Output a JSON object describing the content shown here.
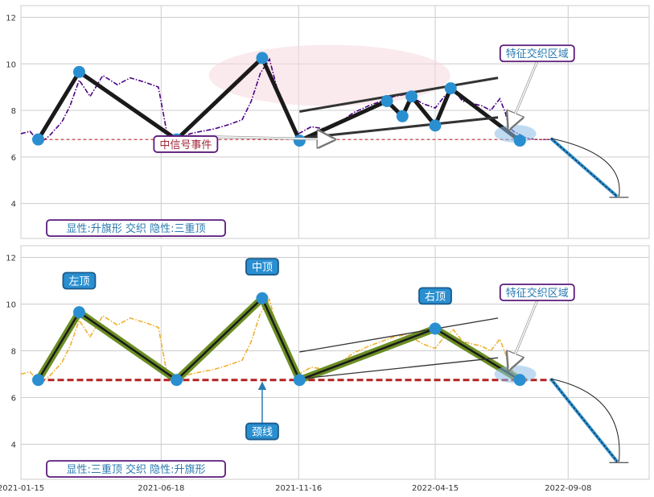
{
  "chart_data": [
    {
      "type": "line",
      "panel": "top",
      "ylim": [
        2.5,
        12.5
      ],
      "yticks": [
        4,
        6,
        8,
        10,
        12
      ],
      "grid": true,
      "series": [
        {
          "name": "",
          "style": "dash-dot",
          "color": "#4b0082",
          "x": [
            "2021-01-15",
            "2021-01-25",
            "2021-02-05",
            "2021-02-15",
            "2021-03-01",
            "2021-03-10",
            "2021-03-20",
            "2021-04-01",
            "2021-04-15",
            "2021-05-01",
            "2021-05-15",
            "2021-06-01",
            "2021-06-15",
            "2021-06-25",
            "2021-07-08",
            "2021-07-20",
            "2021-08-01",
            "2021-08-15",
            "2021-09-01",
            "2021-09-15",
            "2021-09-25",
            "2021-10-05",
            "2021-10-15",
            "2021-10-25",
            "2021-11-05",
            "2021-11-16",
            "2021-11-30",
            "2021-12-15",
            "2022-01-01",
            "2022-01-15",
            "2022-02-01",
            "2022-02-15",
            "2022-03-01",
            "2022-03-15",
            "2022-04-01",
            "2022-04-15",
            "2022-04-25",
            "2022-05-05",
            "2022-05-15",
            "2022-05-25",
            "2022-06-05",
            "2022-06-15",
            "2022-06-25",
            "2022-07-01",
            "2022-07-05",
            "2022-07-10",
            "2022-07-15",
            "2022-07-20",
            "2022-07-25"
          ],
          "y": [
            7.0,
            7.1,
            6.6,
            6.9,
            7.5,
            8.2,
            9.3,
            8.6,
            9.5,
            9.1,
            9.4,
            9.2,
            9.0,
            6.9,
            6.8,
            7.0,
            7.1,
            7.2,
            7.4,
            7.6,
            8.4,
            9.6,
            10.2,
            8.7,
            7.6,
            7.0,
            7.3,
            7.2,
            7.5,
            7.9,
            8.2,
            8.4,
            8.6,
            8.7,
            8.3,
            8.1,
            8.6,
            8.9,
            8.4,
            8.3,
            8.2,
            8.0,
            8.5,
            7.9,
            7.3,
            7.1,
            7.0,
            6.9,
            6.8
          ]
        },
        {
          "name": "",
          "style": "dashed",
          "color": "#4b0082",
          "x": [
            "2022-07-25",
            "2022-08-05",
            "2022-08-20"
          ],
          "y": [
            6.8,
            6.75,
            6.75
          ]
        },
        {
          "name": "",
          "style": "solid-thick",
          "color": "#1a1a1a",
          "x": [
            "2021-02-03",
            "2021-03-20",
            "2021-07-05",
            "2021-10-07",
            "2021-11-17",
            "2022-02-21",
            "2022-03-10",
            "2022-03-20",
            "2022-04-15",
            "2022-05-02",
            "2022-07-17"
          ],
          "y": [
            6.75,
            9.65,
            6.75,
            10.25,
            6.7,
            8.4,
            7.75,
            8.6,
            7.35,
            8.95,
            6.7
          ]
        }
      ],
      "points": [
        {
          "x": "2021-02-03",
          "y": 6.75
        },
        {
          "x": "2021-03-20",
          "y": 9.65
        },
        {
          "x": "2021-07-05",
          "y": 6.75
        },
        {
          "x": "2021-10-07",
          "y": 10.25
        },
        {
          "x": "2021-11-17",
          "y": 6.7
        },
        {
          "x": "2022-02-21",
          "y": 8.4
        },
        {
          "x": "2022-03-10",
          "y": 7.75
        },
        {
          "x": "2022-03-20",
          "y": 8.6
        },
        {
          "x": "2022-04-15",
          "y": 7.35
        },
        {
          "x": "2022-05-02",
          "y": 8.95
        },
        {
          "x": "2022-07-17",
          "y": 6.7
        }
      ],
      "neckline": {
        "x": [
          "2021-02-03",
          "2022-08-20"
        ],
        "y": 6.75
      },
      "channel_upper": {
        "x": [
          "2021-11-17",
          "2022-06-23"
        ],
        "y": [
          7.95,
          9.4
        ]
      },
      "channel_lower": {
        "x": [
          "2021-11-17",
          "2022-06-23"
        ],
        "y": [
          6.8,
          7.7
        ]
      },
      "projection": {
        "x": [
          "2022-08-20",
          "2022-11-01"
        ],
        "y": [
          6.8,
          4.3
        ]
      },
      "annotations": [
        {
          "label": "中信号事件",
          "x": "2021-07-15",
          "y": 6.55,
          "arrow_to": {
            "x": "2021-12-25",
            "y": 6.75
          }
        },
        {
          "label": "特征交织区域",
          "x": "2022-08-05",
          "y": 10.45,
          "arrow_to": {
            "x": "2022-07-05",
            "y": 7.2
          }
        },
        {
          "label": "显性:升旗形 交织 隐性:三重顶",
          "x": "2021-01-15",
          "y": 2.6
        }
      ]
    },
    {
      "type": "line",
      "panel": "bottom",
      "ylim": [
        2.5,
        12.5
      ],
      "yticks": [
        4,
        6,
        8,
        10,
        12
      ],
      "grid": true,
      "xticks": [
        "2021-01-15",
        "2021-06-18",
        "2021-11-16",
        "2022-04-15",
        "2022-09-08"
      ],
      "series": [
        {
          "name": "",
          "style": "dash-dot",
          "color": "#f0b030",
          "x": [
            "2021-01-15",
            "2021-01-25",
            "2021-02-05",
            "2021-02-15",
            "2021-03-01",
            "2021-03-10",
            "2021-03-20",
            "2021-04-01",
            "2021-04-15",
            "2021-05-01",
            "2021-05-15",
            "2021-06-01",
            "2021-06-15",
            "2021-06-25",
            "2021-07-08",
            "2021-07-20",
            "2021-08-01",
            "2021-08-15",
            "2021-09-01",
            "2021-09-15",
            "2021-09-25",
            "2021-10-05",
            "2021-10-15",
            "2021-10-25",
            "2021-11-05",
            "2021-11-16",
            "2021-11-30",
            "2021-12-15",
            "2022-01-01",
            "2022-01-15",
            "2022-02-01",
            "2022-02-15",
            "2022-03-01",
            "2022-03-15",
            "2022-04-01",
            "2022-04-15",
            "2022-04-25",
            "2022-05-05",
            "2022-05-15",
            "2022-05-25",
            "2022-06-05",
            "2022-06-15",
            "2022-06-25",
            "2022-07-01",
            "2022-07-05",
            "2022-07-10",
            "2022-07-15",
            "2022-07-20",
            "2022-07-25"
          ],
          "y": [
            7.0,
            7.1,
            6.6,
            6.9,
            7.5,
            8.2,
            9.3,
            8.6,
            9.5,
            9.1,
            9.4,
            9.2,
            9.0,
            6.9,
            6.8,
            7.0,
            7.1,
            7.2,
            7.4,
            7.6,
            8.4,
            9.6,
            10.2,
            8.7,
            7.6,
            7.0,
            7.3,
            7.2,
            7.5,
            7.9,
            8.2,
            8.4,
            8.6,
            8.7,
            8.3,
            8.1,
            8.6,
            8.9,
            8.4,
            8.3,
            8.2,
            8.0,
            8.5,
            7.9,
            7.3,
            7.1,
            7.0,
            6.9,
            6.8
          ]
        },
        {
          "name": "",
          "style": "solid-thick",
          "color": "#6b8e23",
          "x": [
            "2021-02-03",
            "2021-03-20",
            "2021-07-05",
            "2021-10-07",
            "2021-11-17",
            "2022-04-15",
            "2022-07-17"
          ],
          "y": [
            6.75,
            9.65,
            6.75,
            10.25,
            6.75,
            8.95,
            6.75
          ]
        }
      ],
      "points": [
        {
          "x": "2021-02-03",
          "y": 6.75
        },
        {
          "x": "2021-03-20",
          "y": 9.65
        },
        {
          "x": "2021-07-05",
          "y": 6.75
        },
        {
          "x": "2021-10-07",
          "y": 10.25
        },
        {
          "x": "2021-11-17",
          "y": 6.75
        },
        {
          "x": "2022-04-15",
          "y": 8.95
        },
        {
          "x": "2022-07-17",
          "y": 6.75
        }
      ],
      "neckline": {
        "x": [
          "2021-02-03",
          "2022-08-20"
        ],
        "y": 6.75
      },
      "channel_upper": {
        "x": [
          "2021-11-17",
          "2022-06-23"
        ],
        "y": [
          7.95,
          9.4
        ]
      },
      "channel_lower": {
        "x": [
          "2021-11-17",
          "2022-06-23"
        ],
        "y": [
          6.8,
          7.7
        ]
      },
      "projection": {
        "x": [
          "2022-08-20",
          "2022-11-01"
        ],
        "y": [
          6.8,
          3.25
        ]
      },
      "annotations": [
        {
          "label": "左顶",
          "x": "2021-03-20",
          "y": 11.0
        },
        {
          "label": "中顶",
          "x": "2021-10-07",
          "y": 11.6
        },
        {
          "label": "右顶",
          "x": "2022-04-15",
          "y": 10.35
        },
        {
          "label": "颈线",
          "x": "2021-10-07",
          "y": 4.55,
          "arrow_to": {
            "x": "2021-10-07",
            "y": 6.75
          }
        },
        {
          "label": "特征交织区域",
          "x": "2022-08-05",
          "y": 10.5,
          "arrow_to": {
            "x": "2022-07-05",
            "y": 7.2
          }
        },
        {
          "label": "显性:三重顶 交织 隐性:升旗形",
          "x": "2021-01-15",
          "y": 2.6
        }
      ]
    }
  ]
}
